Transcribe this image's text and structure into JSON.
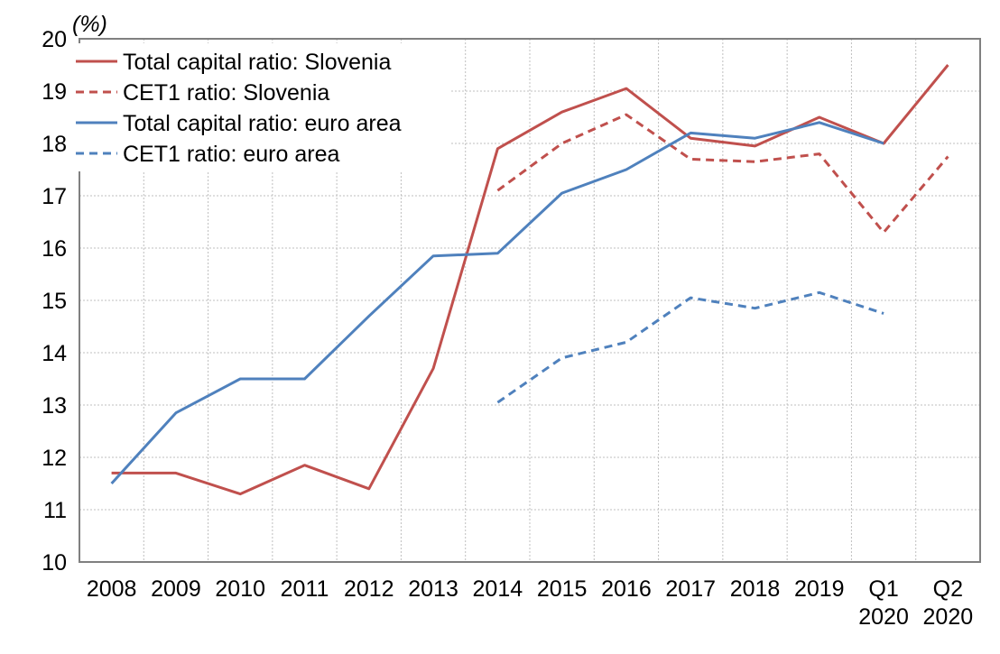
{
  "chart_data": {
    "type": "line",
    "title": "",
    "unit_label": "(%)",
    "xlabel": "",
    "ylabel": "",
    "ylim": [
      10,
      20
    ],
    "yticks": [
      "10",
      "11",
      "12",
      "13",
      "14",
      "15",
      "16",
      "17",
      "18",
      "19",
      "20"
    ],
    "grid": true,
    "legend_position": "top-left",
    "categories": [
      [
        "2008"
      ],
      [
        "2009"
      ],
      [
        "2010"
      ],
      [
        "2011"
      ],
      [
        "2012"
      ],
      [
        "2013"
      ],
      [
        "2014"
      ],
      [
        "2015"
      ],
      [
        "2016"
      ],
      [
        "2017"
      ],
      [
        "2018"
      ],
      [
        "2019"
      ],
      [
        "Q1",
        "2020"
      ],
      [
        "Q2",
        "2020"
      ]
    ],
    "series": [
      {
        "name": "Total capital ratio: Slovenia",
        "color": "#c0504d",
        "dash": "solid",
        "values": [
          11.7,
          11.7,
          11.3,
          11.85,
          11.4,
          13.7,
          17.9,
          18.6,
          19.05,
          18.1,
          17.95,
          18.5,
          18.0,
          19.5
        ]
      },
      {
        "name": "CET1 ratio: Slovenia",
        "color": "#c0504d",
        "dash": "dashed",
        "values": [
          null,
          null,
          null,
          null,
          null,
          null,
          17.1,
          18.0,
          18.55,
          17.7,
          17.65,
          17.8,
          16.3,
          17.75
        ]
      },
      {
        "name": "Total capital ratio: euro area",
        "color": "#4f81bd",
        "dash": "solid",
        "values": [
          11.5,
          12.85,
          13.5,
          13.5,
          14.7,
          15.85,
          15.9,
          17.05,
          17.5,
          18.2,
          18.1,
          18.4,
          18.0,
          null
        ]
      },
      {
        "name": "CET1 ratio: euro area",
        "color": "#4f81bd",
        "dash": "dashed",
        "values": [
          null,
          null,
          null,
          null,
          null,
          null,
          13.05,
          13.9,
          14.2,
          15.05,
          14.85,
          15.15,
          14.75,
          null
        ]
      }
    ]
  }
}
